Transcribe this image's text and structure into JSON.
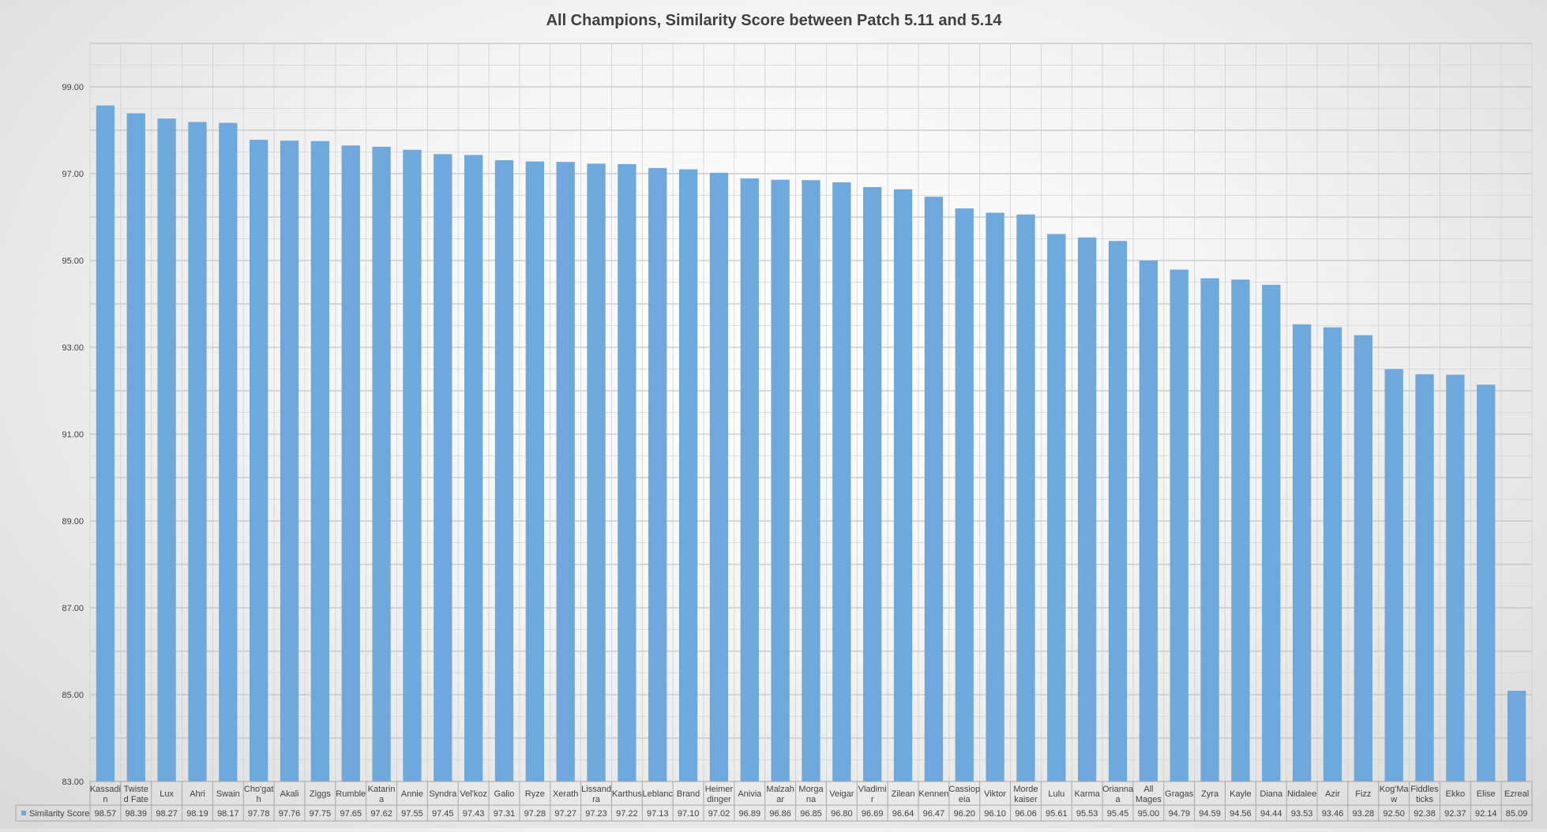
{
  "chart_data": {
    "type": "bar",
    "title": "All Champions, Similarity Score between Patch 5.11 and 5.14",
    "xlabel": "",
    "ylabel": "",
    "ylim": [
      83,
      100
    ],
    "yticks": [
      "83.00",
      "85.00",
      "87.00",
      "89.00",
      "91.00",
      "93.00",
      "95.00",
      "97.00",
      "99.00"
    ],
    "grid": true,
    "legend_placement": "left of data table",
    "bar_color": "#6FA8DC",
    "categories": [
      [
        "Kassadi",
        "n"
      ],
      [
        "Twiste",
        "d Fate"
      ],
      [
        "Lux"
      ],
      [
        "Ahri"
      ],
      [
        "Swain"
      ],
      [
        "Cho'gat",
        "h"
      ],
      [
        "Akali"
      ],
      [
        "Ziggs"
      ],
      [
        "Rumble"
      ],
      [
        "Katarin",
        "a"
      ],
      [
        "Annie"
      ],
      [
        "Syndra"
      ],
      [
        "Vel'koz"
      ],
      [
        "Galio"
      ],
      [
        "Ryze"
      ],
      [
        "Xerath"
      ],
      [
        "Lissand",
        "ra"
      ],
      [
        "Karthus"
      ],
      [
        "Leblanc"
      ],
      [
        "Brand"
      ],
      [
        "Heimer",
        "dinger"
      ],
      [
        "Anivia"
      ],
      [
        "Malzah",
        "ar"
      ],
      [
        "Morga",
        "na"
      ],
      [
        "Veigar"
      ],
      [
        "Vladimi",
        "r"
      ],
      [
        "Zilean"
      ],
      [
        "Kennen"
      ],
      [
        "Cassiop",
        "eia"
      ],
      [
        "Viktor"
      ],
      [
        "Morde",
        "kaiser"
      ],
      [
        "Lulu"
      ],
      [
        "Karma"
      ],
      [
        "Orianna",
        "a"
      ],
      [
        "All",
        "Mages"
      ],
      [
        "Gragas"
      ],
      [
        "Zyra"
      ],
      [
        "Kayle"
      ],
      [
        "Diana"
      ],
      [
        "Nidalee"
      ],
      [
        "Azir"
      ],
      [
        "Fizz"
      ],
      [
        "Kog'Ma",
        "w"
      ],
      [
        "Fiddles",
        "ticks"
      ],
      [
        "Ekko"
      ],
      [
        "Elise"
      ],
      [
        "Ezreal"
      ]
    ],
    "series": [
      {
        "name": "Similarity Score",
        "values": [
          98.57,
          98.39,
          98.27,
          98.19,
          98.17,
          97.78,
          97.76,
          97.75,
          97.65,
          97.62,
          97.55,
          97.45,
          97.43,
          97.31,
          97.28,
          97.27,
          97.23,
          97.22,
          97.13,
          97.1,
          97.02,
          96.89,
          96.86,
          96.85,
          96.8,
          96.69,
          96.64,
          96.47,
          96.2,
          96.1,
          96.06,
          95.61,
          95.53,
          95.45,
          95.0,
          94.79,
          94.59,
          94.56,
          94.44,
          93.53,
          93.46,
          93.28,
          92.5,
          92.38,
          92.37,
          92.14,
          85.09
        ],
        "value_labels": [
          "98.57",
          "98.39",
          "98.27",
          "98.19",
          "98.17",
          "97.78",
          "97.76",
          "97.75",
          "97.65",
          "97.62",
          "97.55",
          "97.45",
          "97.43",
          "97.31",
          "97.28",
          "97.27",
          "97.23",
          "97.22",
          "97.13",
          "97.10",
          "97.02",
          "96.89",
          "96.86",
          "96.85",
          "96.80",
          "96.69",
          "96.64",
          "96.47",
          "96.20",
          "96.10",
          "96.06",
          "95.61",
          "95.53",
          "95.45",
          "95.00",
          "94.79",
          "94.59",
          "94.56",
          "94.44",
          "93.53",
          "93.46",
          "93.28",
          "92.50",
          "92.38",
          "92.37",
          "92.14",
          "85.09"
        ]
      }
    ]
  }
}
